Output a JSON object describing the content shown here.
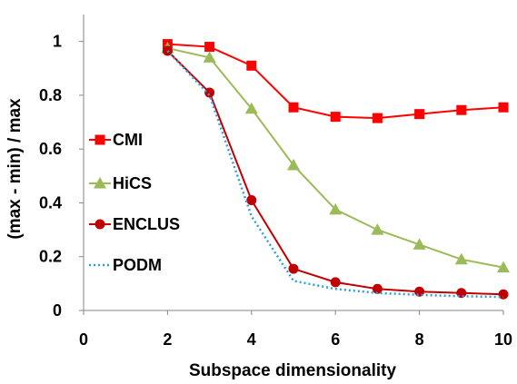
{
  "chart_data": {
    "type": "line",
    "title": "",
    "xlabel": "Subspace dimensionality",
    "ylabel": "(max - min) / max",
    "xlim": [
      0,
      10
    ],
    "ylim": [
      0,
      1.1
    ],
    "x_ticks": [
      "0",
      "2",
      "4",
      "6",
      "8",
      "10"
    ],
    "y_ticks": [
      "0",
      "0.2",
      "0.4",
      "0.6",
      "0.8",
      "1"
    ],
    "grid": false,
    "legend_position": "left",
    "series": [
      {
        "name": "CMI",
        "color": "#ff0000",
        "marker": "square",
        "line_style": "solid",
        "x": [
          2,
          3,
          4,
          5,
          6,
          7,
          8,
          9,
          10
        ],
        "y": [
          0.99,
          0.98,
          0.91,
          0.755,
          0.72,
          0.715,
          0.73,
          0.745,
          0.755
        ]
      },
      {
        "name": "HiCS",
        "color": "#9bbb59",
        "marker": "triangle",
        "line_style": "solid",
        "x": [
          2,
          3,
          4,
          5,
          6,
          7,
          8,
          9,
          10
        ],
        "y": [
          0.975,
          0.94,
          0.75,
          0.54,
          0.375,
          0.3,
          0.245,
          0.19,
          0.16
        ]
      },
      {
        "name": "ENCLUS",
        "color": "#c00000",
        "marker": "circle",
        "line_style": "solid",
        "x": [
          2,
          3,
          4,
          5,
          6,
          7,
          8,
          9,
          10
        ],
        "y": [
          0.965,
          0.81,
          0.41,
          0.155,
          0.105,
          0.08,
          0.07,
          0.065,
          0.06
        ]
      },
      {
        "name": "PODM",
        "color": "#2e9fd8",
        "marker": "none",
        "line_style": "dotted",
        "x": [
          2,
          3,
          4,
          5,
          6,
          7,
          8,
          9,
          10
        ],
        "y": [
          0.965,
          0.8,
          0.35,
          0.11,
          0.08,
          0.065,
          0.058,
          0.053,
          0.05
        ]
      }
    ]
  }
}
